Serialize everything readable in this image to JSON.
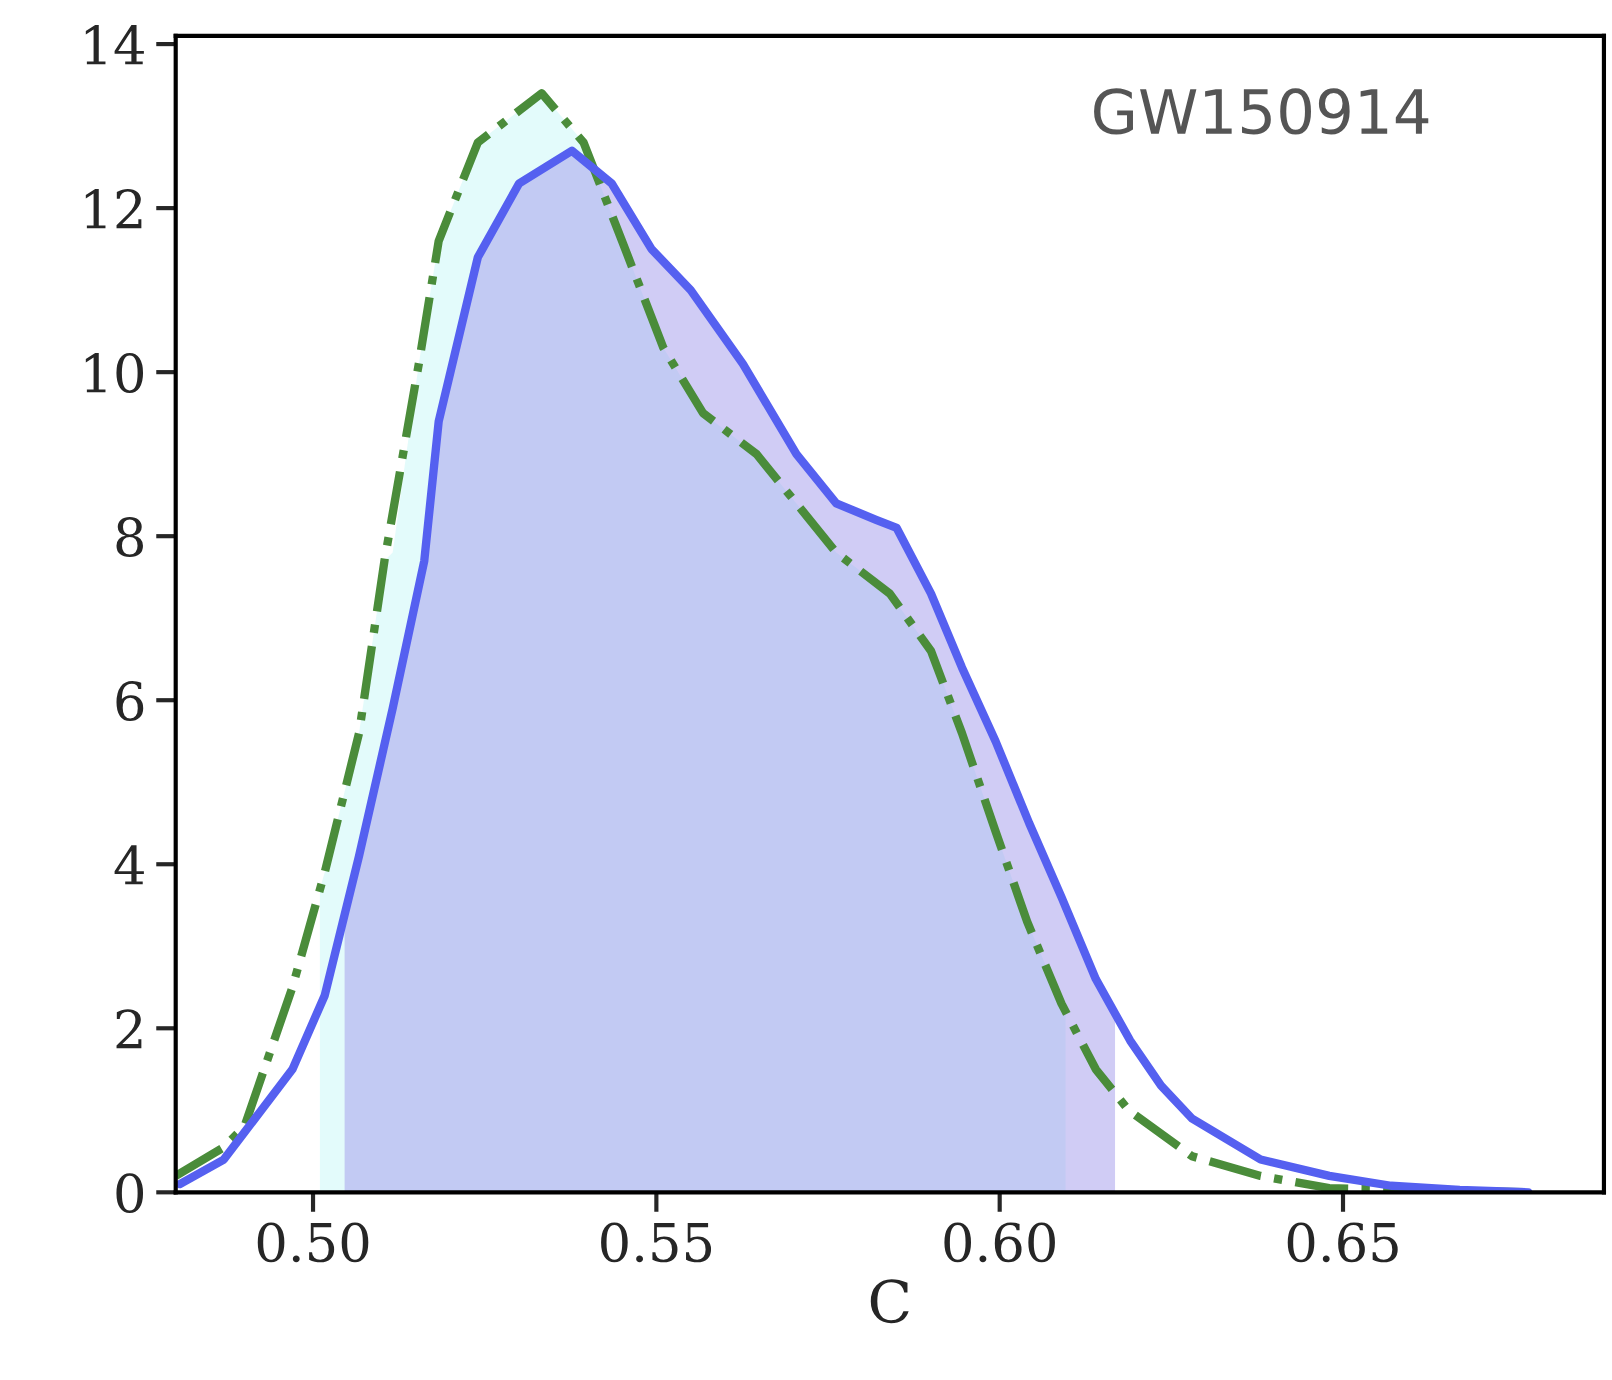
{
  "chart_data": {
    "type": "line",
    "xlabel": "C",
    "annotations": [
      "GW150914"
    ],
    "xlim": [
      0.48,
      0.688
    ],
    "ylim": [
      0,
      14.1
    ],
    "xticks": [
      {
        "value": 0.5,
        "label": "0.50"
      },
      {
        "value": 0.55,
        "label": "0.55"
      },
      {
        "value": 0.6,
        "label": "0.60"
      },
      {
        "value": 0.65,
        "label": "0.65"
      }
    ],
    "yticks": [
      0,
      2,
      4,
      6,
      8,
      10,
      12,
      14
    ],
    "grid": false,
    "legend": false,
    "series": [
      {
        "type": "area",
        "color": "#c8f8f8",
        "x": [
          0.501,
          0.5017,
          0.5067,
          0.5104,
          0.5116,
          0.5154,
          0.5183,
          0.524,
          0.5333,
          0.5394,
          0.545,
          0.551,
          0.5568,
          0.5646,
          0.5704,
          0.5762,
          0.584,
          0.59,
          0.5945,
          0.5994,
          0.604,
          0.6096
        ],
        "values": [
          3.7,
          3.9,
          5.6,
          7.7,
          7.8,
          10.1,
          11.6,
          12.8,
          13.4,
          12.8,
          11.6,
          10.3,
          9.5,
          9.0,
          8.4,
          7.8,
          7.3,
          6.6,
          5.6,
          4.4,
          3.3,
          2.2
        ]
      },
      {
        "type": "area",
        "color": "#a199eb",
        "x": [
          0.5046,
          0.5067,
          0.5116,
          0.5162,
          0.5183,
          0.524,
          0.53,
          0.5377,
          0.5435,
          0.5493,
          0.555,
          0.5626,
          0.5704,
          0.5762,
          0.582,
          0.585,
          0.59,
          0.5945,
          0.5994,
          0.6043,
          0.609,
          0.614,
          0.6168
        ],
        "values": [
          3.4,
          4.1,
          5.9,
          7.7,
          9.4,
          11.4,
          12.3,
          12.7,
          12.3,
          11.5,
          11.0,
          10.1,
          9.0,
          8.4,
          8.2,
          8.1,
          7.3,
          6.4,
          5.5,
          4.5,
          3.6,
          2.6,
          2.2
        ]
      },
      {
        "line_style": "dashdot",
        "color": "#4a8c3a",
        "x": [
          0.48,
          0.487,
          0.49,
          0.497,
          0.5017,
          0.5067,
          0.5104,
          0.5154,
          0.5183,
          0.524,
          0.5333,
          0.5394,
          0.545,
          0.551,
          0.5568,
          0.5646,
          0.5704,
          0.5762,
          0.584,
          0.59,
          0.5945,
          0.5994,
          0.604,
          0.609,
          0.614,
          0.6188,
          0.628,
          0.638,
          0.648,
          0.677
        ],
        "values": [
          0.2,
          0.55,
          0.8,
          2.5,
          3.9,
          5.6,
          7.7,
          10.1,
          11.6,
          12.8,
          13.4,
          12.8,
          11.6,
          10.3,
          9.5,
          9.0,
          8.4,
          7.8,
          7.3,
          6.6,
          5.6,
          4.4,
          3.3,
          2.3,
          1.5,
          1.0,
          0.44,
          0.2,
          0.05,
          0
        ]
      },
      {
        "line_style": "solid",
        "color": "#5560f0",
        "x": [
          0.4806,
          0.487,
          0.497,
          0.5017,
          0.5067,
          0.5116,
          0.5162,
          0.5183,
          0.524,
          0.53,
          0.5377,
          0.5435,
          0.5493,
          0.555,
          0.5626,
          0.5704,
          0.5762,
          0.582,
          0.585,
          0.59,
          0.5945,
          0.5994,
          0.6043,
          0.609,
          0.614,
          0.619,
          0.6235,
          0.628,
          0.638,
          0.648,
          0.657,
          0.667,
          0.677
        ],
        "values": [
          0.1,
          0.4,
          1.5,
          2.4,
          4.1,
          5.9,
          7.7,
          9.4,
          11.4,
          12.3,
          12.7,
          12.3,
          11.5,
          11.0,
          10.1,
          9.0,
          8.4,
          8.2,
          8.1,
          7.3,
          6.4,
          5.5,
          4.5,
          3.6,
          2.6,
          1.85,
          1.3,
          0.9,
          0.4,
          0.2,
          0.08,
          0.03,
          0
        ]
      }
    ]
  }
}
